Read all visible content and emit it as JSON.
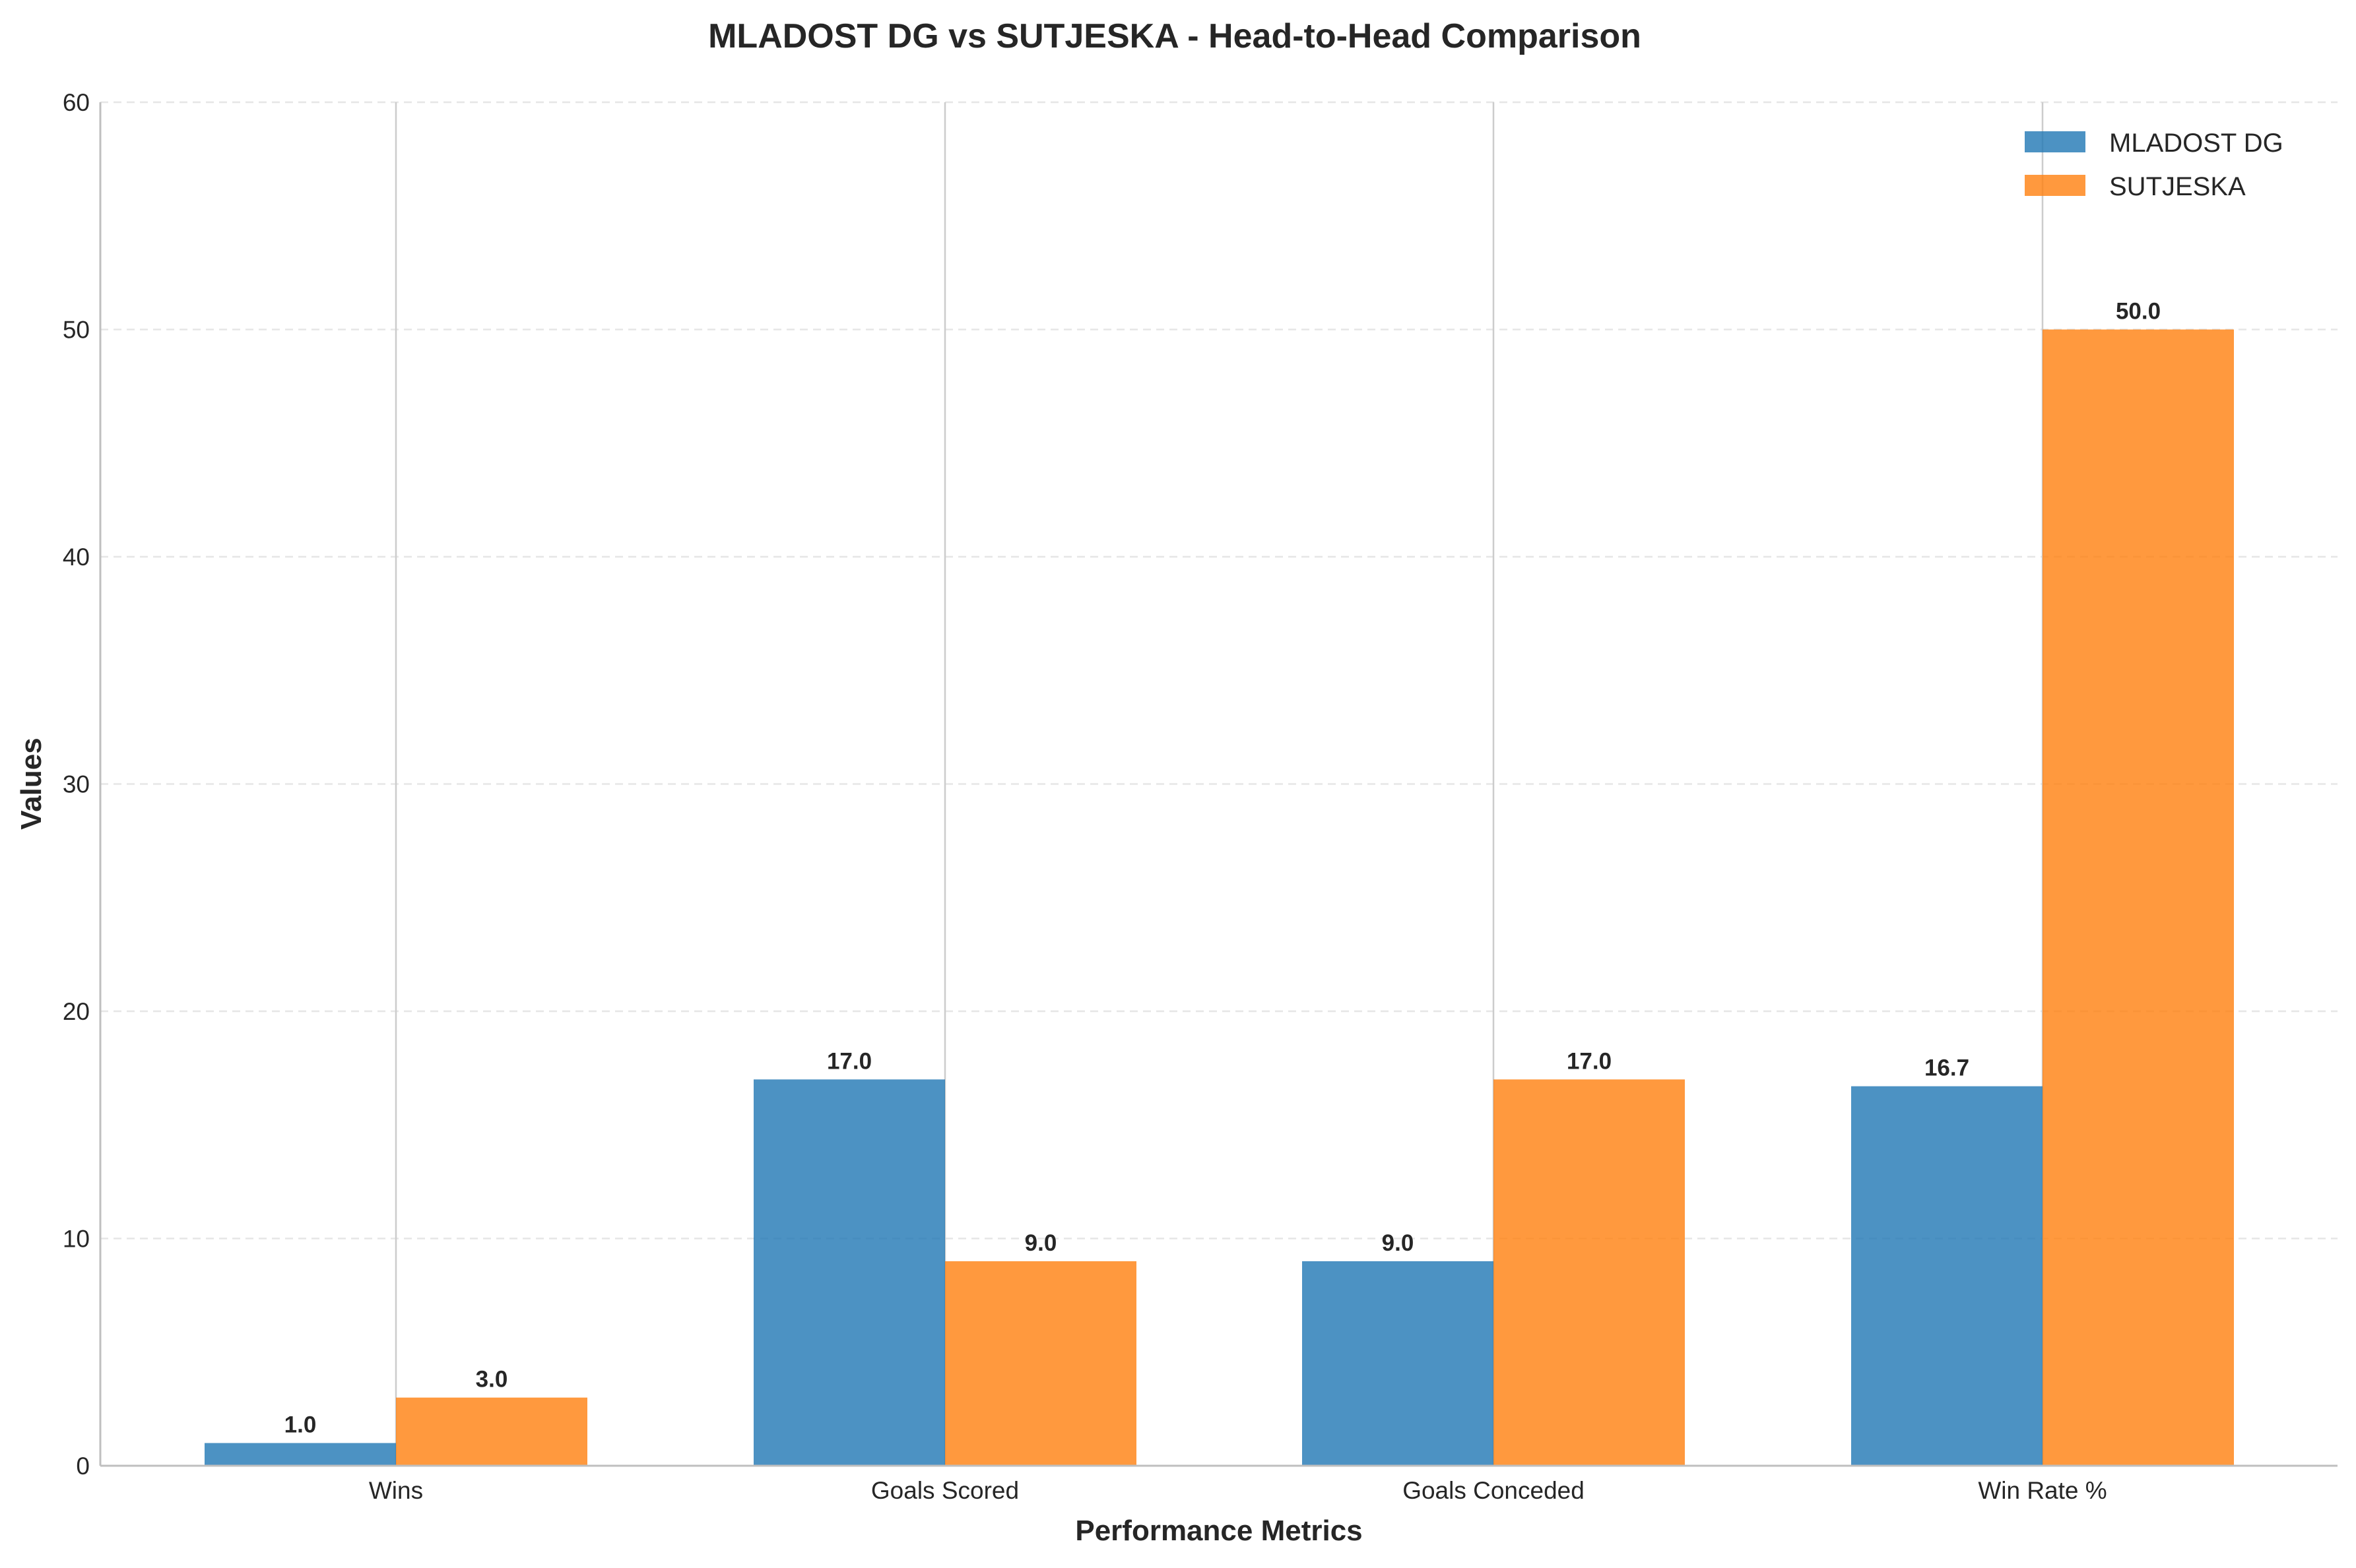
{
  "chart_data": {
    "type": "bar",
    "title": "MLADOST DG vs SUTJESKA - Head-to-Head Comparison",
    "xlabel": "Performance Metrics",
    "ylabel": "Values",
    "categories": [
      "Wins",
      "Goals Scored",
      "Goals Conceded",
      "Win Rate %"
    ],
    "series": [
      {
        "name": "MLADOST DG",
        "color": "#1f77b4",
        "values": [
          1.0,
          17.0,
          9.0,
          16.7
        ],
        "labels": [
          "1.0",
          "17.0",
          "9.0",
          "16.7"
        ]
      },
      {
        "name": "SUTJESKA",
        "color": "#ff7f0e",
        "values": [
          3.0,
          9.0,
          17.0,
          50.0
        ],
        "labels": [
          "3.0",
          "9.0",
          "17.0",
          "50.0"
        ]
      }
    ],
    "ylim": [
      0,
      60
    ],
    "yticks": [
      0,
      10,
      20,
      30,
      40,
      50,
      60
    ],
    "ytick_labels": [
      "0",
      "10",
      "20",
      "30",
      "40",
      "50",
      "60"
    ],
    "grid": {
      "y": true,
      "y_style": "dashed",
      "x": true
    },
    "legend_position": "top-right"
  }
}
